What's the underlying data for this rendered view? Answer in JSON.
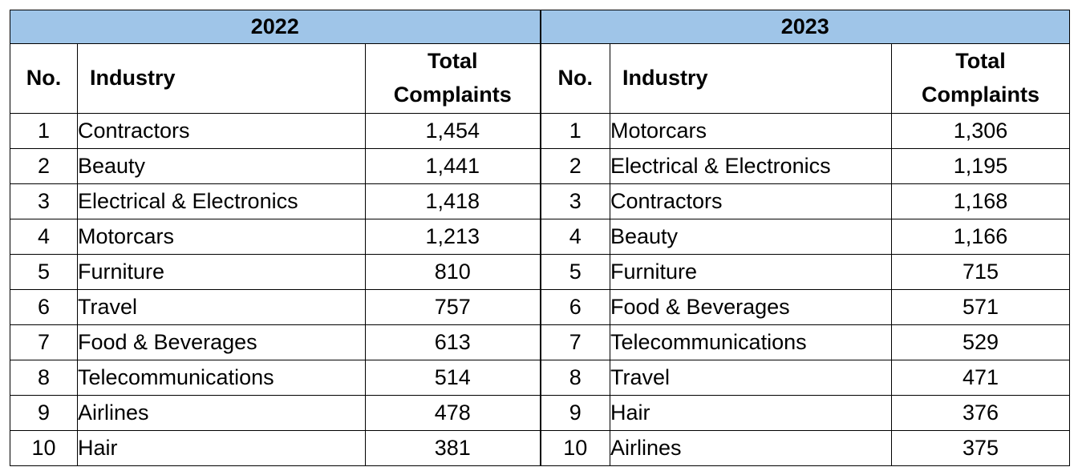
{
  "colors": {
    "year_header_bg": "#9fc5e8",
    "border": "#000000",
    "text": "#000000"
  },
  "years": [
    {
      "label": "2022",
      "headers": {
        "no": "No.",
        "industry": "Industry",
        "total_line1": "Total",
        "total_line2": "Complaints"
      },
      "rows": [
        {
          "no": "1",
          "industry": "Contractors",
          "total": "1,454"
        },
        {
          "no": "2",
          "industry": "Beauty",
          "total": "1,441"
        },
        {
          "no": "3",
          "industry": "Electrical & Electronics",
          "total": "1,418"
        },
        {
          "no": "4",
          "industry": "Motorcars",
          "total": "1,213"
        },
        {
          "no": "5",
          "industry": "Furniture",
          "total": "810"
        },
        {
          "no": "6",
          "industry": "Travel",
          "total": "757"
        },
        {
          "no": "7",
          "industry": "Food & Beverages",
          "total": "613"
        },
        {
          "no": "8",
          "industry": "Telecommunications",
          "total": "514"
        },
        {
          "no": "9",
          "industry": "Airlines",
          "total": "478"
        },
        {
          "no": "10",
          "industry": "Hair",
          "total": "381"
        }
      ]
    },
    {
      "label": "2023",
      "headers": {
        "no": "No.",
        "industry": "Industry",
        "total_line1": "Total",
        "total_line2": "Complaints"
      },
      "rows": [
        {
          "no": "1",
          "industry": "Motorcars",
          "total": "1,306"
        },
        {
          "no": "2",
          "industry": "Electrical & Electronics",
          "total": "1,195"
        },
        {
          "no": "3",
          "industry": "Contractors",
          "total": "1,168"
        },
        {
          "no": "4",
          "industry": "Beauty",
          "total": "1,166"
        },
        {
          "no": "5",
          "industry": "Furniture",
          "total": "715"
        },
        {
          "no": "6",
          "industry": "Food & Beverages",
          "total": "571"
        },
        {
          "no": "7",
          "industry": "Telecommunications",
          "total": "529"
        },
        {
          "no": "8",
          "industry": "Travel",
          "total": "471"
        },
        {
          "no": "9",
          "industry": "Hair",
          "total": "376"
        },
        {
          "no": "10",
          "industry": "Airlines",
          "total": "375"
        }
      ]
    }
  ]
}
